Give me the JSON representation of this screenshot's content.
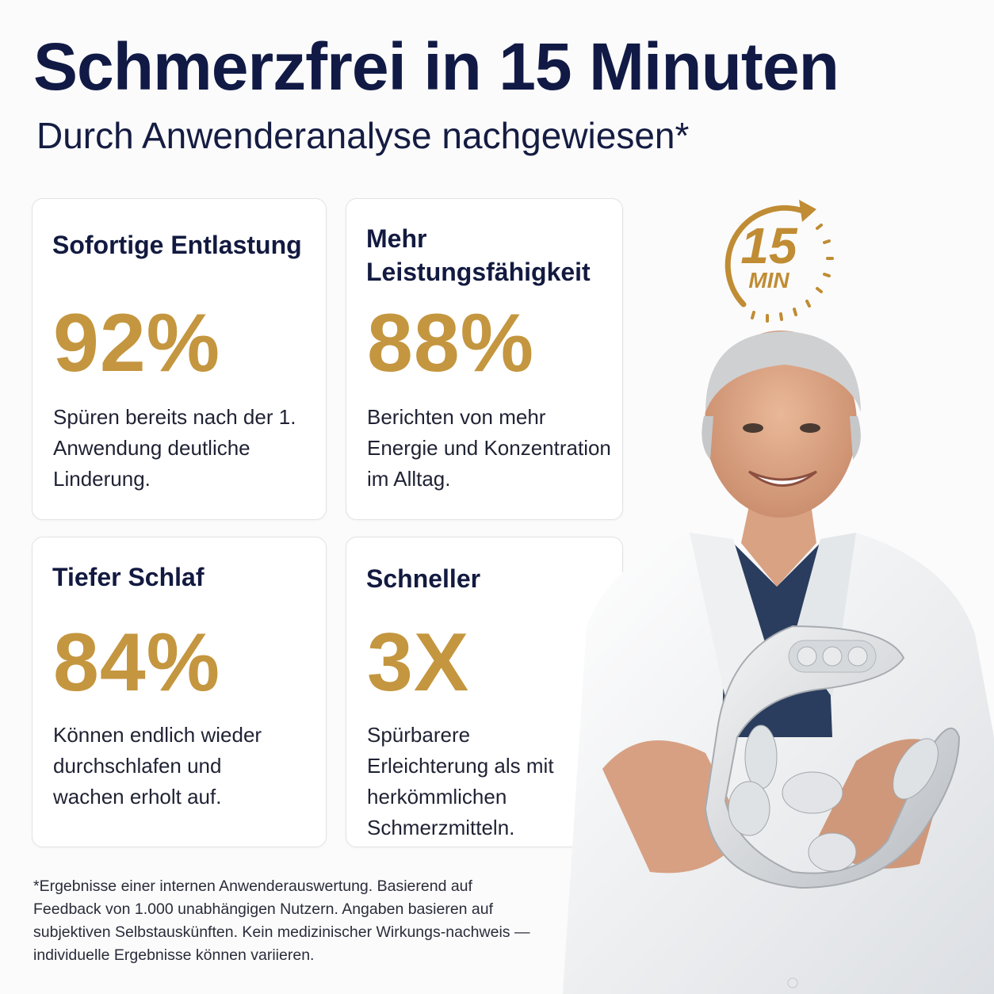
{
  "headline": "Schmerzfrei in 15 Minuten",
  "subheadline": "Durch Anwenderanalyse nachgewiesen*",
  "badge": {
    "number": "15",
    "unit": "MIN",
    "icon": "timer-arrow-icon"
  },
  "cards": [
    {
      "title_lines": [
        "Sofortige Entlastung"
      ],
      "value": "92%",
      "description": "Spüren bereits nach der 1. Anwendung deutliche Linderung."
    },
    {
      "title_lines": [
        "Mehr",
        "Leistungsfähigkeit"
      ],
      "value": "88%",
      "description": "Berichten von mehr Energie und Konzentration im Alltag."
    },
    {
      "title_lines": [
        "Tiefer Schlaf"
      ],
      "value": "84%",
      "description": "Können endlich wieder durchschlafen und wachen erholt auf."
    },
    {
      "title_lines": [
        "Schneller"
      ],
      "value": "3X",
      "description": "Spürbarere Erleichterung als mit herkömmlichen Schmerzmitteln."
    }
  ],
  "footnote": "*Ergebnisse einer internen Anwenderauswertung. Basierend auf Feedback von 1.000 unabhängigen Nutzern. Angaben basieren auf subjektiven Selbstauskünften. Kein medizinischer Wirkungs-nachweis — individuelle Ergebnisse können variieren.",
  "colors": {
    "navy": "#111a45",
    "gold": "#c4963f",
    "background": "#fbfbfb"
  }
}
